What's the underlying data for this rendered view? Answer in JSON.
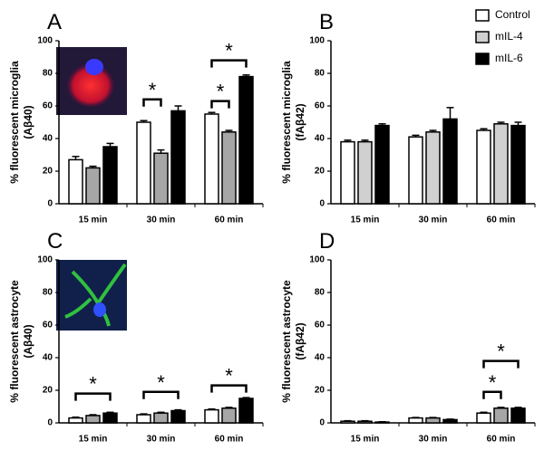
{
  "chart_data": [
    {
      "type": "bar",
      "panel": "A",
      "ylabel": [
        "% fluorescent microglia",
        "(Aβ40)"
      ],
      "categories": [
        "15 min",
        "30 min",
        "60 min"
      ],
      "series": [
        {
          "color": "#ffffff",
          "values": [
            27,
            50,
            55
          ],
          "errors": [
            2,
            1,
            1
          ]
        },
        {
          "color": "#a6a6a6",
          "values": [
            22,
            31,
            44
          ],
          "errors": [
            1,
            2,
            1
          ]
        },
        {
          "color": "#000000",
          "values": [
            35,
            57,
            78
          ],
          "errors": [
            2,
            3,
            1
          ]
        }
      ],
      "ylim": [
        0,
        100
      ],
      "yticks": [
        0,
        20,
        40,
        60,
        80,
        100
      ],
      "annotations": [
        "*",
        "*",
        "*"
      ]
    },
    {
      "type": "bar",
      "panel": "B",
      "ylabel": [
        "% fluorescent microglia",
        "(fAβ42)"
      ],
      "categories": [
        "15 min",
        "30 min",
        "60 min"
      ],
      "series": [
        {
          "name": "Control",
          "color": "#ffffff",
          "values": [
            38,
            41,
            45
          ],
          "errors": [
            1,
            1,
            1
          ]
        },
        {
          "name": "mIL-4",
          "color": "#d0d0d0",
          "values": [
            38,
            44,
            49
          ],
          "errors": [
            1,
            1,
            1
          ]
        },
        {
          "name": "mIL-6",
          "color": "#000000",
          "values": [
            48,
            52,
            48
          ],
          "errors": [
            1,
            7,
            2
          ]
        }
      ],
      "ylim": [
        0,
        100
      ],
      "yticks": [
        0,
        20,
        40,
        60,
        80,
        100
      ],
      "legend": "upper right"
    },
    {
      "type": "bar",
      "panel": "C",
      "ylabel": [
        "% fluorescent astrocyte",
        "(Aβ40)"
      ],
      "categories": [
        "15 min",
        "30 min",
        "60 min"
      ],
      "series": [
        {
          "color": "#ffffff",
          "values": [
            3,
            5,
            8
          ],
          "errors": [
            0.5,
            0.5,
            0.5
          ]
        },
        {
          "color": "#a6a6a6",
          "values": [
            4.5,
            6,
            9
          ],
          "errors": [
            0.5,
            0.5,
            0.5
          ]
        },
        {
          "color": "#000000",
          "values": [
            6,
            7.5,
            15
          ],
          "errors": [
            0.5,
            0.5,
            0.5
          ]
        }
      ],
      "ylim": [
        0,
        100
      ],
      "yticks": [
        0,
        20,
        40,
        60,
        80,
        100
      ],
      "annotations": [
        "*",
        "*",
        "*"
      ]
    },
    {
      "type": "bar",
      "panel": "D",
      "ylabel": [
        "% fluorescent astrocyte",
        "(fAβ42)"
      ],
      "categories": [
        "15 min",
        "30 min",
        "60 min"
      ],
      "series": [
        {
          "color": "#ffffff",
          "values": [
            1,
            3,
            6
          ],
          "errors": [
            0.3,
            0.3,
            0.5
          ]
        },
        {
          "color": "#a6a6a6",
          "values": [
            1,
            3,
            9
          ],
          "errors": [
            0.3,
            0.3,
            0.5
          ]
        },
        {
          "color": "#000000",
          "values": [
            0.5,
            2,
            9
          ],
          "errors": [
            0.2,
            0.3,
            0.5
          ]
        }
      ],
      "ylim": [
        0,
        100
      ],
      "yticks": [
        0,
        20,
        40,
        60,
        80,
        100
      ],
      "annotations": [
        "*",
        "*"
      ]
    }
  ]
}
